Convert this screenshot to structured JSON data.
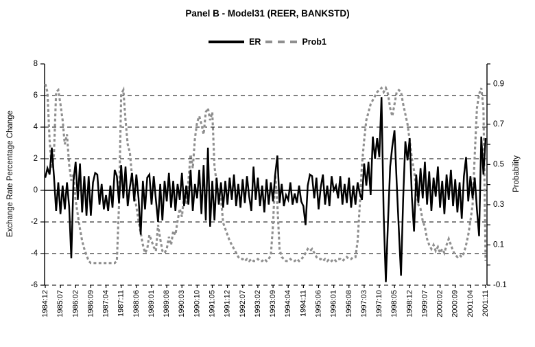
{
  "title": "Panel B - Model31 (REER, BANKSTD)",
  "legend": {
    "er": "ER",
    "prob1": "Prob1"
  },
  "colors": {
    "er": "#000000",
    "prob1": "#8f8f8f",
    "grid": "#000000"
  },
  "chart_data": {
    "type": "line",
    "title": "Panel B - Model31 (REER, BANKSTD)",
    "x_tick_labels": [
      "1984:12",
      "1985:07",
      "1986:02",
      "1986:09",
      "1987:04",
      "1987:11",
      "1988:06",
      "1989:01",
      "1989:08",
      "1990:03",
      "1990:10",
      "1991:05",
      "1991:12",
      "1992:07",
      "1993:02",
      "1993:09",
      "1994:04",
      "1994:11",
      "1995:06",
      "1996:01",
      "1996:08",
      "1997:03",
      "1997:10",
      "1998:05",
      "1998:12",
      "1999:07",
      "2000:02",
      "2000:09",
      "2001:04",
      "2001:11"
    ],
    "months_per_tick": 7,
    "left_axis": {
      "label": "Exchange Rate Percentage Change",
      "min": -6,
      "max": 8,
      "tick_step": 2,
      "tick_values": [
        8,
        6,
        4,
        2,
        0,
        -2,
        -4,
        -6
      ]
    },
    "right_axis": {
      "label": "Probability",
      "min": -0.1,
      "max": 1.0,
      "minor_step": 0.1,
      "label_ticks": [
        0.9,
        0.7,
        0.5,
        0.3,
        0.1,
        -0.1
      ]
    },
    "grid": {
      "dashed_levels": [
        6,
        4,
        2,
        -2,
        -4,
        -6
      ],
      "solid_level": 0
    },
    "legend_position": "top-center",
    "series": [
      {
        "name": "ER",
        "axis": "left",
        "style": "solid",
        "values": [
          0.8,
          1.4,
          1.0,
          2.7,
          0.9,
          -1.3,
          0.5,
          -1.5,
          0.3,
          -1.2,
          0.5,
          -1.0,
          -4.3,
          0.6,
          1.8,
          -0.6,
          1.7,
          -1.4,
          0.9,
          -1.6,
          0.9,
          -1.6,
          0.5,
          1.1,
          1.0,
          -0.9,
          0.4,
          -1.2,
          -0.3,
          -1.3,
          0.3,
          -1.1,
          1.3,
          0.9,
          -0.8,
          1.6,
          -0.5,
          1.5,
          -1.0,
          0.2,
          1.1,
          -0.7,
          1.0,
          -0.5,
          -2.8,
          0.6,
          -1.2,
          0.8,
          1.0,
          -0.9,
          0.9,
          -0.6,
          -2.0,
          0.4,
          -1.9,
          0.6,
          -0.7,
          1.1,
          -1.1,
          0.6,
          -1.3,
          0.4,
          -0.6,
          1.1,
          -1.0,
          0.3,
          -0.9,
          1.3,
          -1.3,
          0.4,
          -0.5,
          1.3,
          -1.5,
          1.6,
          -1.9,
          2.7,
          -2.3,
          0.6,
          -1.9,
          0.8,
          -0.9,
          0.5,
          -1.1,
          0.6,
          -0.9,
          0.8,
          -0.6,
          1.0,
          -1.0,
          0.4,
          -1.1,
          0.7,
          -0.8,
          0.9,
          -0.4,
          -1.3,
          1.5,
          -0.6,
          0.8,
          -1.0,
          0.3,
          -1.4,
          0.7,
          -0.9,
          0.5,
          -0.7,
          1.0,
          2.2,
          -0.8,
          0.4,
          -1.0,
          -0.3,
          -0.6,
          0.5,
          -0.9,
          -0.2,
          -0.8,
          0.3,
          -0.7,
          -1.0,
          -2.2,
          0.3,
          1.0,
          0.9,
          -0.5,
          0.8,
          -1.2,
          0.2,
          1.0,
          -0.9,
          0.3,
          -1.0,
          0.9,
          0.0,
          0.3,
          -0.5,
          0.9,
          -0.9,
          0.4,
          -0.8,
          0.8,
          -1.1,
          0.3,
          -0.9,
          0.5,
          -0.2,
          -0.6,
          1.7,
          0.3,
          1.8,
          -0.3,
          3.4,
          2.0,
          3.3,
          2.1,
          5.9,
          -1.5,
          -5.8,
          -2.0,
          1.5,
          2.8,
          3.8,
          0.5,
          -2.5,
          -5.4,
          -0.5,
          3.1,
          1.9,
          3.3,
          -0.4,
          -2.6,
          1.0,
          -0.8,
          1.4,
          -0.5,
          1.8,
          -0.9,
          1.2,
          -1.3,
          0.8,
          -0.4,
          1.5,
          -1.1,
          0.6,
          -1.5,
          1.0,
          -0.6,
          1.3,
          -1.0,
          0.7,
          -1.4,
          0.5,
          -1.8,
          0.9,
          2.1,
          -0.7,
          0.9,
          -0.5,
          0.8,
          -1.2,
          -2.9,
          3.4,
          1.0,
          3.3
        ]
      },
      {
        "name": "Prob1",
        "axis": "right",
        "style": "dashed",
        "values": [
          0.9,
          0.86,
          0.62,
          0.48,
          0.55,
          0.86,
          0.87,
          0.8,
          0.72,
          0.6,
          0.65,
          0.5,
          0.42,
          0.45,
          0.32,
          0.25,
          0.18,
          0.12,
          0.08,
          0.05,
          0.02,
          0.01,
          0.01,
          0.01,
          0.01,
          0.01,
          0.01,
          0.01,
          0.01,
          0.01,
          0.01,
          0.01,
          0.01,
          0.02,
          0.3,
          0.85,
          0.87,
          0.72,
          0.6,
          0.56,
          0.44,
          0.35,
          0.29,
          0.22,
          0.16,
          0.1,
          0.06,
          0.08,
          0.15,
          0.12,
          0.09,
          0.07,
          0.2,
          0.13,
          0.07,
          0.06,
          0.08,
          0.14,
          0.1,
          0.17,
          0.15,
          0.22,
          0.28,
          0.24,
          0.35,
          0.3,
          0.42,
          0.55,
          0.48,
          0.63,
          0.71,
          0.74,
          0.7,
          0.65,
          0.76,
          0.78,
          0.72,
          0.76,
          0.49,
          0.41,
          0.35,
          0.33,
          0.21,
          0.18,
          0.15,
          0.12,
          0.1,
          0.08,
          0.06,
          0.04,
          0.03,
          0.03,
          0.02,
          0.03,
          0.02,
          0.03,
          0.02,
          0.02,
          0.03,
          0.02,
          0.02,
          0.03,
          0.02,
          0.03,
          0.05,
          0.2,
          0.45,
          0.3,
          0.08,
          0.04,
          0.03,
          0.02,
          0.02,
          0.03,
          0.02,
          0.02,
          0.03,
          0.02,
          0.03,
          0.04,
          0.06,
          0.08,
          0.07,
          0.08,
          0.06,
          0.04,
          0.03,
          0.03,
          0.02,
          0.03,
          0.02,
          0.03,
          0.02,
          0.03,
          0.02,
          0.03,
          0.03,
          0.02,
          0.03,
          0.04,
          0.03,
          0.03,
          0.04,
          0.04,
          0.12,
          0.3,
          0.5,
          0.62,
          0.72,
          0.76,
          0.8,
          0.82,
          0.84,
          0.86,
          0.87,
          0.88,
          0.86,
          0.88,
          0.85,
          0.78,
          0.74,
          0.8,
          0.86,
          0.87,
          0.86,
          0.8,
          0.75,
          0.7,
          0.62,
          0.53,
          0.47,
          0.38,
          0.3,
          0.28,
          0.22,
          0.19,
          0.13,
          0.1,
          0.08,
          0.1,
          0.07,
          0.09,
          0.06,
          0.08,
          0.06,
          0.1,
          0.13,
          0.1,
          0.07,
          0.05,
          0.04,
          0.05,
          0.04,
          0.06,
          0.1,
          0.15,
          0.22,
          0.3,
          0.55,
          0.78,
          0.85,
          0.88,
          0.78,
          0.02
        ]
      }
    ]
  }
}
